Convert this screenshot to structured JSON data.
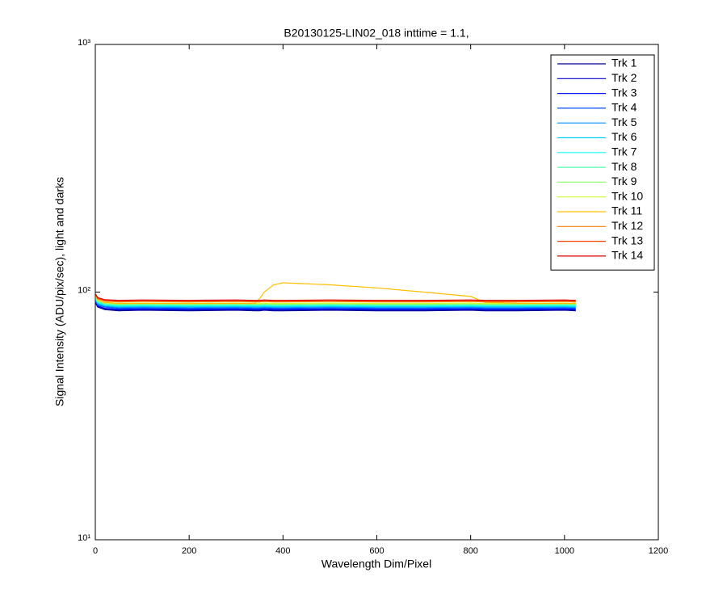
{
  "chart_data": {
    "type": "line",
    "title": "B20130125-LIN02_018 inttime = 1.1,",
    "x_label": "Wavelength Dim/Pixel",
    "y_label": "Signal Intensity (ADU/pix/sec), light and darks",
    "x": [
      1,
      5,
      20,
      50,
      100,
      200,
      300,
      340,
      350,
      360,
      380,
      400,
      500,
      600,
      700,
      800,
      830,
      900,
      1000,
      1024
    ],
    "xlim": [
      0,
      1200
    ],
    "xticks": [
      0,
      200,
      400,
      600,
      800,
      1000,
      1200
    ],
    "ylim": [
      10,
      1000
    ],
    "yscale": "log",
    "yticks": [
      {
        "value": 10,
        "label": "10¹"
      },
      {
        "value": 100,
        "label": "10²"
      },
      {
        "value": 1000,
        "label": "10³"
      }
    ],
    "grid": false,
    "legend": "upper right",
    "series": [
      {
        "name": "Trk 1",
        "color": "#00008f",
        "values": [
          90,
          87,
          85,
          84,
          84.5,
          84,
          84.5,
          84,
          84,
          84.5,
          84,
          84,
          84.5,
          84,
          84,
          84.5,
          84,
          84,
          84.5,
          84
        ]
      },
      {
        "name": "Trk 2",
        "color": "#0000cf",
        "values": [
          90.5,
          87.5,
          85.5,
          84.7,
          85,
          84.7,
          85,
          84.7,
          84.7,
          85,
          84.7,
          84.7,
          85,
          84.7,
          84.7,
          85,
          84.7,
          84.7,
          85,
          84.7
        ]
      },
      {
        "name": "Trk 3",
        "color": "#0010ff",
        "values": [
          91,
          88,
          86,
          85.3,
          85.6,
          85.3,
          85.6,
          85.3,
          85.3,
          85.6,
          85.3,
          85.3,
          85.6,
          85.3,
          85.3,
          85.6,
          85.3,
          85.3,
          85.6,
          85.3
        ]
      },
      {
        "name": "Trk 4",
        "color": "#0050ff",
        "values": [
          92,
          89,
          87,
          86,
          86.3,
          86,
          86.3,
          86,
          86,
          86.3,
          86,
          86,
          86.3,
          86,
          86,
          86.3,
          86,
          86,
          86.3,
          86
        ]
      },
      {
        "name": "Trk 5",
        "color": "#0090ff",
        "values": [
          92.5,
          89.5,
          87.6,
          86.6,
          87,
          86.6,
          87,
          86.6,
          86.6,
          87,
          86.6,
          86.6,
          87,
          86.6,
          86.6,
          87,
          86.6,
          86.6,
          87,
          86.6
        ]
      },
      {
        "name": "Trk 6",
        "color": "#00d0ff",
        "values": [
          93,
          90,
          88.2,
          87.3,
          87.6,
          87.3,
          87.6,
          87.3,
          87.3,
          87.6,
          87.3,
          87.3,
          87.6,
          87.3,
          87.3,
          87.6,
          87.3,
          87.3,
          87.6,
          87.3
        ]
      },
      {
        "name": "Trk 7",
        "color": "#10ffef",
        "values": [
          94,
          91,
          89,
          88,
          88.3,
          88,
          88.3,
          88,
          88,
          88.3,
          88,
          88,
          88.3,
          88,
          88,
          88.3,
          88,
          88,
          88.3,
          88
        ]
      },
      {
        "name": "Trk 8",
        "color": "#50ffaf",
        "values": [
          94.5,
          91.5,
          89.5,
          88.6,
          89,
          88.6,
          89,
          88.6,
          88.6,
          89,
          88.6,
          88.6,
          89,
          88.6,
          88.6,
          89,
          88.6,
          88.6,
          89,
          88.6
        ]
      },
      {
        "name": "Trk 9",
        "color": "#90ff6f",
        "values": [
          95,
          92,
          90,
          89.3,
          89.6,
          89.3,
          89.6,
          89.3,
          89.3,
          89.6,
          89.3,
          89.3,
          89.6,
          89.3,
          89.3,
          89.6,
          89.3,
          89.3,
          89.6,
          89.3
        ]
      },
      {
        "name": "Trk 10",
        "color": "#d0ff2f",
        "values": [
          96,
          93,
          91,
          90,
          90.3,
          90,
          90.3,
          90,
          90,
          90.3,
          90,
          90,
          90.3,
          90,
          90,
          90.3,
          90,
          90,
          90.3,
          90
        ]
      },
      {
        "name": "Trk 11",
        "color": "#ffbf00",
        "values": [
          96,
          93,
          91,
          90,
          90,
          90,
          90,
          90,
          94,
          100,
          107,
          109,
          107,
          104,
          100,
          96,
          91,
          90,
          90,
          90
        ]
      },
      {
        "name": "Trk 12",
        "color": "#ff7f00",
        "values": [
          97,
          94,
          92,
          91.3,
          91.6,
          91.3,
          91.6,
          91.3,
          91.3,
          91.6,
          91.3,
          91.3,
          91.6,
          91.3,
          91.3,
          91.6,
          91.3,
          91.3,
          91.6,
          91.3
        ]
      },
      {
        "name": "Trk 13",
        "color": "#ff3f00",
        "values": [
          97.5,
          94.5,
          92.6,
          92,
          92.3,
          92,
          92.3,
          92,
          92,
          92.3,
          92,
          92,
          92.3,
          92,
          92,
          92.3,
          92,
          92,
          92.3,
          92
        ]
      },
      {
        "name": "Trk 14",
        "color": "#df0000",
        "values": [
          98,
          95,
          93.2,
          92.6,
          93,
          92.6,
          93,
          92.6,
          92.6,
          93,
          92.6,
          92.6,
          93,
          92.6,
          92.6,
          93,
          92.6,
          92.6,
          93,
          92.6
        ]
      }
    ]
  }
}
